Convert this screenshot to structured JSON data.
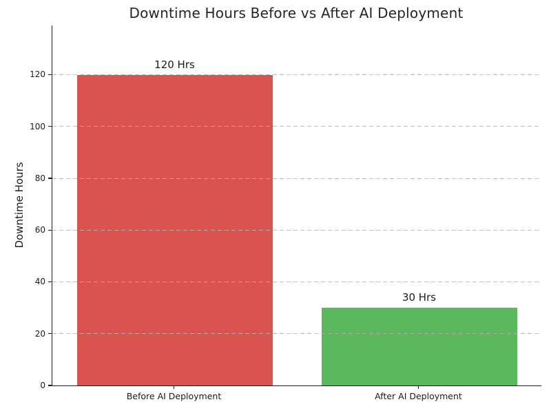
{
  "chart_data": {
    "type": "bar",
    "title": "Downtime Hours Before vs After AI Deployment",
    "categories": [
      "Before AI Deployment",
      "After AI Deployment"
    ],
    "values": [
      120,
      30
    ],
    "data_labels": [
      "120 Hrs",
      "30 Hrs"
    ],
    "bar_colors": [
      "#d9534f",
      "#5cb85c"
    ],
    "xlabel": "",
    "ylabel": "Downtime Hours",
    "ylim": [
      0,
      139
    ],
    "yticks": [
      0,
      20,
      40,
      60,
      80,
      100,
      120
    ],
    "bar_width_fraction": 0.8,
    "grid": "horizontal-dashed",
    "grid_color": "#cccccc",
    "legend": "none",
    "background_color": "#ffffff",
    "title_color": "#212529",
    "text_color": "#1a1a1a"
  }
}
